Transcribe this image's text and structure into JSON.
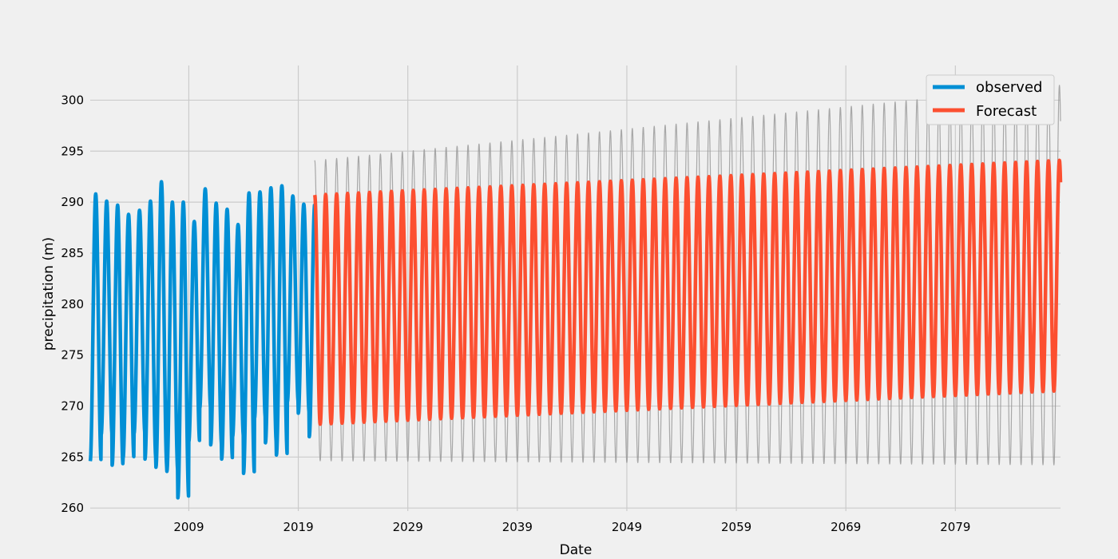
{
  "chart_data": {
    "type": "line",
    "title": "",
    "xlabel": "Date",
    "ylabel": "precipitation (m)",
    "xlim": [
      2000.0,
      2088.6
    ],
    "ylim": [
      259.7,
      303.4
    ],
    "x_ticks": [
      2009,
      2019,
      2029,
      2039,
      2049,
      2059,
      2069,
      2079
    ],
    "y_ticks": [
      260,
      265,
      270,
      275,
      280,
      285,
      290,
      295,
      300
    ],
    "grid": true,
    "legend_position": "top-right",
    "legend": [
      "observed",
      "Forecast"
    ],
    "colors": {
      "background": "#f0f0f0",
      "grid": "#cbcbcb",
      "observed": "#008fd5",
      "forecast": "#fc4f30",
      "confidence_band": "#9a9a9a"
    },
    "series": [
      {
        "name": "observed",
        "x_start": 2000.0,
        "x_end": 2020.5,
        "period_years": 1.0,
        "peaks": [
          290.8,
          290.1,
          289.7,
          288.8,
          289.2,
          290.1,
          292.0,
          290.0,
          290.0,
          288.1,
          291.3,
          289.9,
          289.3,
          287.8,
          290.9,
          291.0,
          291.4,
          291.6,
          290.6,
          289.8,
          289.8
        ],
        "troughs": [
          264.6,
          267.2,
          264.2,
          264.9,
          267.3,
          264.8,
          264.0,
          263.6,
          261.0,
          266.5,
          269.8,
          266.2,
          264.8,
          267.0,
          263.4,
          268.8,
          266.4,
          265.2,
          270.4,
          269.3,
          267.0
        ]
      },
      {
        "name": "Forecast",
        "x_start": 2020.5,
        "x_end": 2088.6,
        "period_years": 1.0,
        "peak_range": [
          290.7,
          294.1
        ],
        "trough_range": [
          268.2,
          271.5
        ],
        "upper_ci_range": [
          294.1,
          301.5
        ],
        "lower_ci_range": [
          264.6,
          264.2
        ]
      }
    ]
  }
}
